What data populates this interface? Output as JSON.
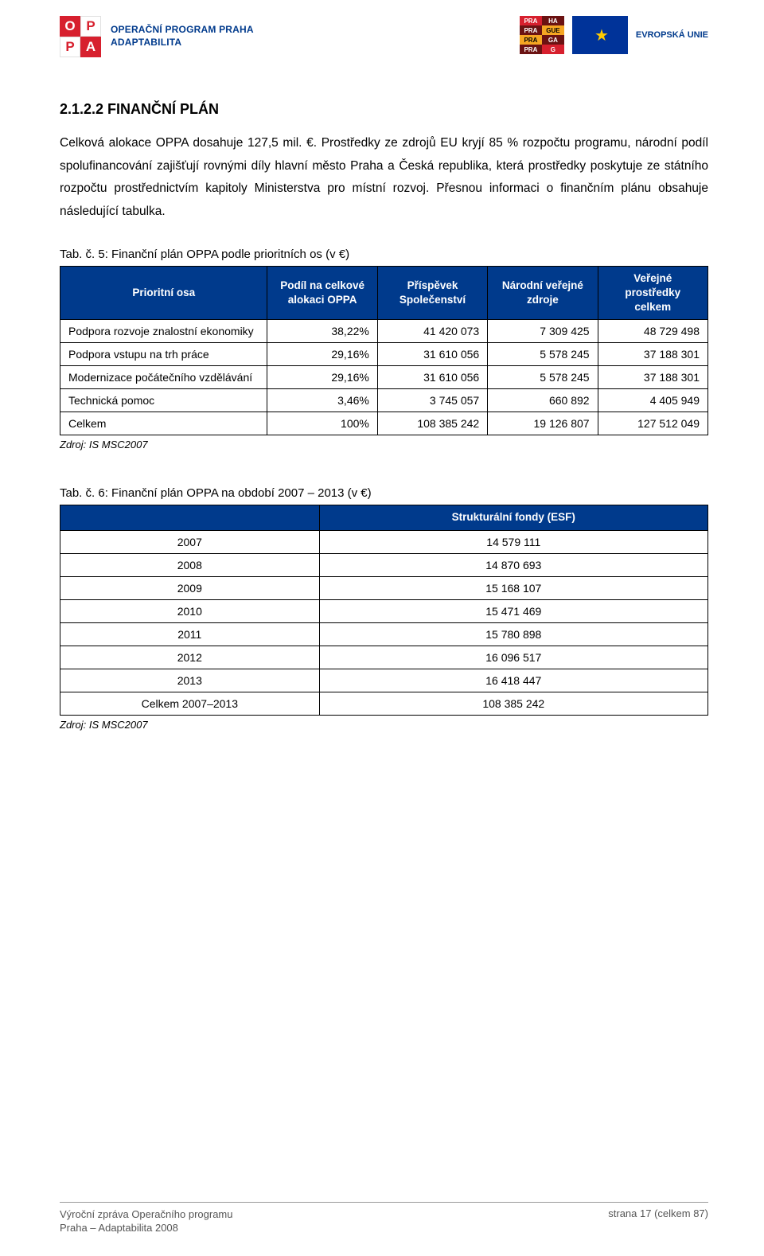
{
  "header": {
    "oppa_text_line1": "OPERAČNÍ PROGRAM PRAHA",
    "oppa_text_line2": "ADAPTABILITA",
    "oppa_letters": [
      "O",
      "P",
      "P",
      "A"
    ],
    "prague_cells": [
      "PRA",
      "HA",
      "PRA",
      "GUE",
      "PRA",
      "GA",
      "PRA",
      "G"
    ],
    "eu_text": "EVROPSKÁ UNIE"
  },
  "section": {
    "heading": "2.1.2.2  FINANČNÍ PLÁN",
    "para": "Celková alokace OPPA dosahuje 127,5 mil. €. Prostředky ze zdrojů EU kryjí 85 % rozpočtu programu, národní podíl spolufinancování zajišťují rovnými díly hlavní město Praha a Česká republika, která prostředky poskytuje ze státního rozpočtu prostřednictvím kapitoly Ministerstva pro místní rozvoj. Přesnou informaci o finančním plánu obsahuje následující tabulka."
  },
  "table1": {
    "caption": "Tab. č. 5: Finanční plán OPPA podle prioritních os (v €)",
    "header_bg": "#003a8c",
    "columns": [
      "Prioritní osa",
      "Podíl na celkové alokaci OPPA",
      "Příspěvek Společenství",
      "Národní veřejné zdroje",
      "Veřejné prostředky celkem"
    ],
    "rows": [
      {
        "label": "Podpora rozvoje znalostní ekonomiky",
        "share": "38,22%",
        "c1": "41 420 073",
        "c2": "7 309 425",
        "c3": "48 729 498"
      },
      {
        "label": "Podpora vstupu na trh práce",
        "share": "29,16%",
        "c1": "31 610 056",
        "c2": "5 578 245",
        "c3": "37 188 301"
      },
      {
        "label": "Modernizace počátečního vzdělávání",
        "share": "29,16%",
        "c1": "31 610 056",
        "c2": "5 578 245",
        "c3": "37 188 301"
      },
      {
        "label": "Technická pomoc",
        "share": "3,46%",
        "c1": "3 745 057",
        "c2": "660 892",
        "c3": "4 405 949"
      },
      {
        "label": "Celkem",
        "share": "100%",
        "c1": "108 385 242",
        "c2": "19 126 807",
        "c3": "127 512 049"
      }
    ],
    "source": "Zdroj: IS MSC2007"
  },
  "table2": {
    "caption": "Tab. č. 6: Finanční plán OPPA na období 2007 – 2013 (v €)",
    "column_header": "Strukturální fondy (ESF)",
    "rows": [
      {
        "year": "2007",
        "value": "14 579 111"
      },
      {
        "year": "2008",
        "value": "14 870 693"
      },
      {
        "year": "2009",
        "value": "15 168 107"
      },
      {
        "year": "2010",
        "value": "15 471 469"
      },
      {
        "year": "2011",
        "value": "15 780 898"
      },
      {
        "year": "2012",
        "value": "16 096 517"
      },
      {
        "year": "2013",
        "value": "16 418 447"
      },
      {
        "year": "Celkem 2007–2013",
        "value": "108 385 242"
      }
    ],
    "source": "Zdroj: IS MSC2007"
  },
  "footer": {
    "left_line1": "Výroční zpráva Operačního programu",
    "left_line2": "Praha – Adaptabilita 2008",
    "right": "strana 17 (celkem 87)"
  }
}
